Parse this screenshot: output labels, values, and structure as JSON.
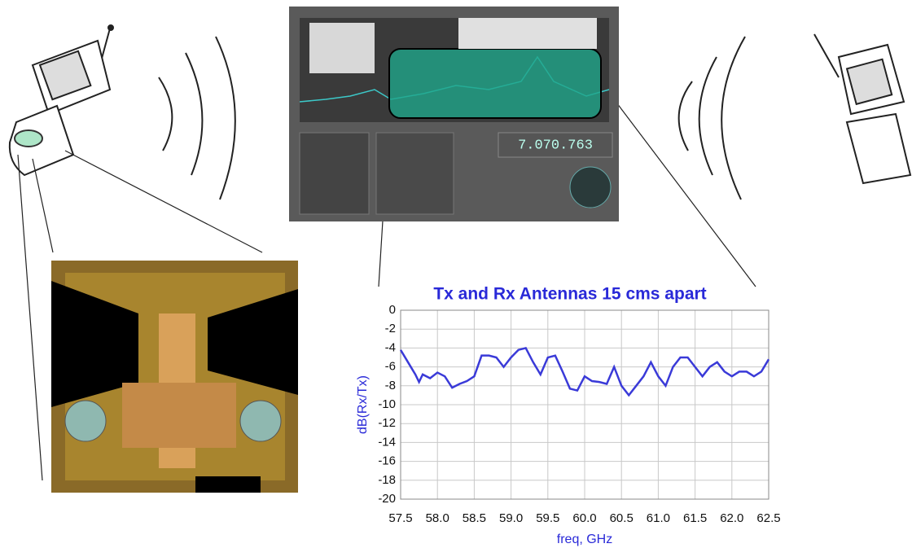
{
  "chart_data": {
    "type": "line",
    "title": "Tx and Rx Antennas 15 cms apart",
    "xlabel": "freq, GHz",
    "ylabel": "dB(Rx/Tx)",
    "x": [
      57.5,
      57.6,
      57.7,
      57.75,
      57.8,
      57.9,
      58.0,
      58.1,
      58.2,
      58.3,
      58.4,
      58.5,
      58.6,
      58.7,
      58.8,
      58.9,
      59.0,
      59.1,
      59.2,
      59.3,
      59.4,
      59.5,
      59.6,
      59.7,
      59.8,
      59.9,
      60.0,
      60.1,
      60.2,
      60.3,
      60.4,
      60.5,
      60.6,
      60.7,
      60.8,
      60.9,
      61.0,
      61.1,
      61.2,
      61.3,
      61.4,
      61.5,
      61.6,
      61.7,
      61.8,
      61.9,
      62.0,
      62.1,
      62.2,
      62.3,
      62.4,
      62.5
    ],
    "series": [
      {
        "name": "dB(Rx/Tx)",
        "color": "#3a3ad8",
        "values": [
          -4.2,
          -5.5,
          -6.8,
          -7.6,
          -6.8,
          -7.2,
          -6.6,
          -7.0,
          -8.2,
          -7.8,
          -7.5,
          -7.0,
          -4.8,
          -4.8,
          -5.0,
          -6.0,
          -5.0,
          -4.2,
          -4.0,
          -5.5,
          -6.8,
          -5.0,
          -4.8,
          -6.5,
          -8.3,
          -8.5,
          -7.0,
          -7.5,
          -7.6,
          -7.8,
          -6.0,
          -8.0,
          -9.0,
          -8.0,
          -7.0,
          -5.5,
          -7.0,
          -8.0,
          -6.0,
          -5.0,
          -5.0,
          -6.0,
          -7.0,
          -6.0,
          -5.5,
          -6.5,
          -7.0,
          -6.5,
          -6.5,
          -7.0,
          -6.5,
          -5.2
        ]
      }
    ],
    "xlim": [
      57.5,
      62.5
    ],
    "xticks": [
      57.5,
      {
        "value": 58,
        "label": "58.0"
      },
      58.5,
      {
        "value": 59,
        "label": "59.0"
      },
      59.5,
      {
        "value": 60,
        "label": "60.0"
      },
      60.5,
      {
        "value": 61,
        "label": "61.0"
      },
      61.5,
      {
        "value": 62,
        "label": "62.0"
      },
      62.5
    ],
    "ylim": [
      -20,
      0
    ],
    "yticks": [
      0,
      -2,
      -4,
      -6,
      -8,
      -10,
      -12,
      -14,
      -16,
      -18,
      -20
    ],
    "grid": true
  },
  "screenshot": {
    "frequency_display": "7.070.763"
  }
}
